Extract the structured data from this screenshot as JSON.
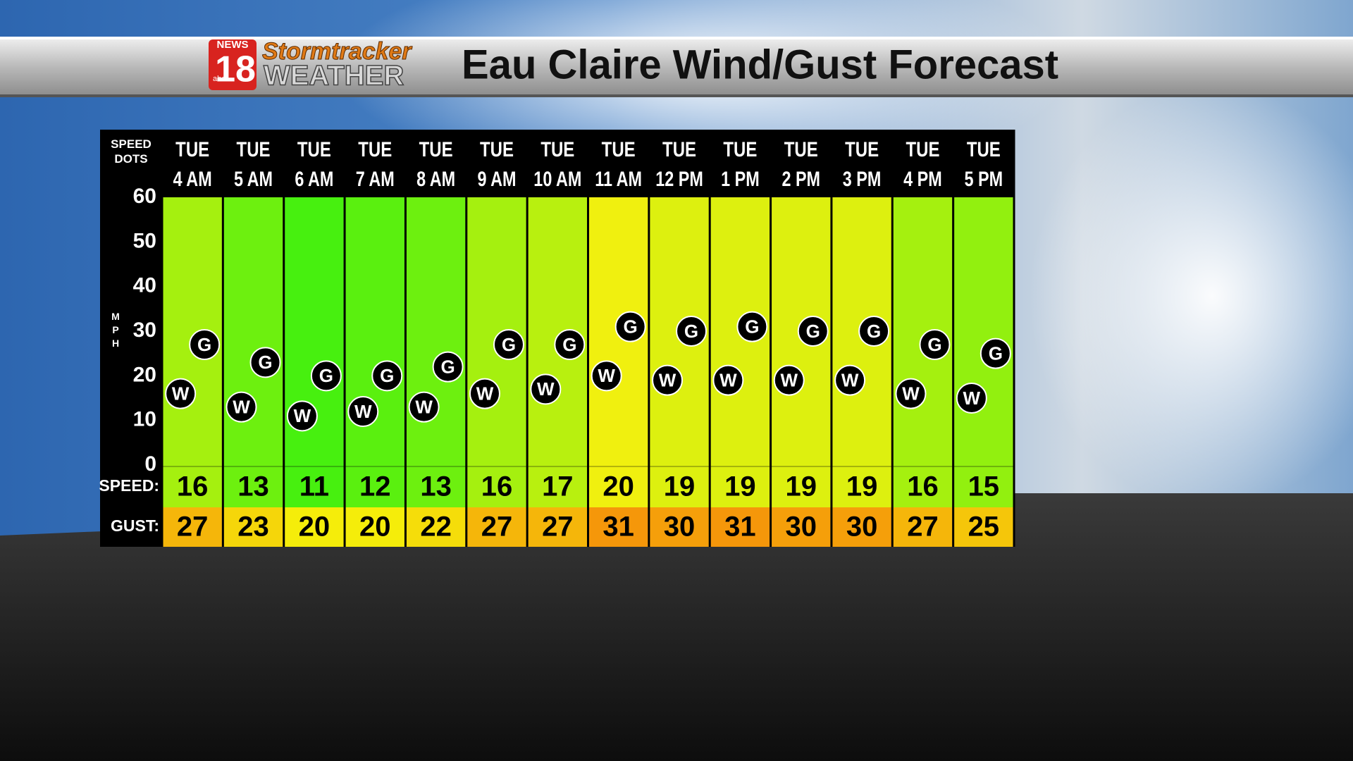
{
  "logo": {
    "news": "NEWS",
    "number": "18",
    "network": "abc",
    "brand": "Stormtracker",
    "product": "WEATHER"
  },
  "chart_data": {
    "type": "dotplot",
    "title": "Eau Claire Wind/Gust Forecast",
    "corner_label": "SPEED DOTS",
    "y_label": "MPH",
    "category_days": [
      "TUE",
      "TUE",
      "TUE",
      "TUE",
      "TUE",
      "TUE",
      "TUE",
      "TUE",
      "TUE",
      "TUE",
      "TUE",
      "TUE",
      "TUE",
      "TUE"
    ],
    "categories": [
      "4 AM",
      "5 AM",
      "6 AM",
      "7 AM",
      "8 AM",
      "9 AM",
      "10 AM",
      "11 AM",
      "12 PM",
      "1 PM",
      "2 PM",
      "3 PM",
      "4 PM",
      "5 PM"
    ],
    "series": [
      {
        "name": "SPEED:",
        "marker": "W",
        "values": [
          16,
          13,
          11,
          12,
          13,
          16,
          17,
          20,
          19,
          19,
          19,
          19,
          16,
          15
        ]
      },
      {
        "name": "GUST:",
        "marker": "G",
        "values": [
          27,
          23,
          20,
          20,
          22,
          27,
          27,
          31,
          30,
          31,
          30,
          30,
          27,
          25
        ]
      }
    ],
    "ylim": [
      0,
      60
    ],
    "yticks": [
      0,
      10,
      20,
      30,
      40,
      50,
      60
    ]
  }
}
